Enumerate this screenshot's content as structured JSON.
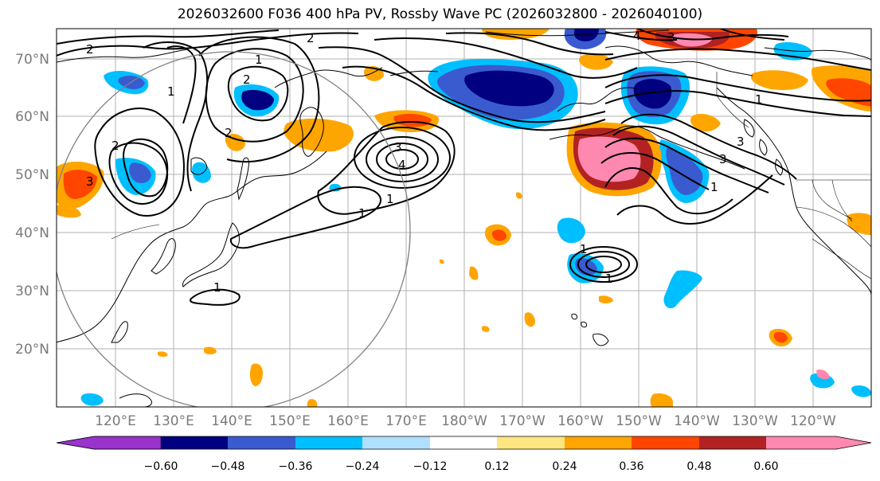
{
  "title": "2026032600 F036 400 hPa PV, Rossby Wave PC (2026032800 - 2026040100)",
  "lat_labels": [
    "70°N",
    "60°N",
    "50°N",
    "40°N",
    "30°N",
    "20°N"
  ],
  "lon_labels": [
    "120°E",
    "130°E",
    "140°E",
    "150°E",
    "160°E",
    "170°E",
    "180°W",
    "170°W",
    "160°W",
    "150°W",
    "140°W",
    "130°W",
    "120°W"
  ],
  "colorbar": {
    "colors": [
      "#9933cc",
      "#000080",
      "#3a5bcf",
      "#00bfff",
      "#b0e0ff",
      "#ffffff",
      "#ffe680",
      "#ffa500",
      "#ff4500",
      "#b22222",
      "#ff88b0"
    ],
    "ticks": [
      "−0.60",
      "−0.48",
      "−0.36",
      "−0.24",
      "−0.12",
      "0.12",
      "0.24",
      "0.36",
      "0.48",
      "0.60"
    ]
  },
  "contour_labels": [
    "2",
    "1",
    "2",
    "1",
    "2",
    "3",
    "4",
    "1",
    "1",
    "1",
    "3",
    "3",
    "1",
    "1",
    "1",
    "1",
    "2",
    "3",
    "2",
    "4",
    "3"
  ]
}
